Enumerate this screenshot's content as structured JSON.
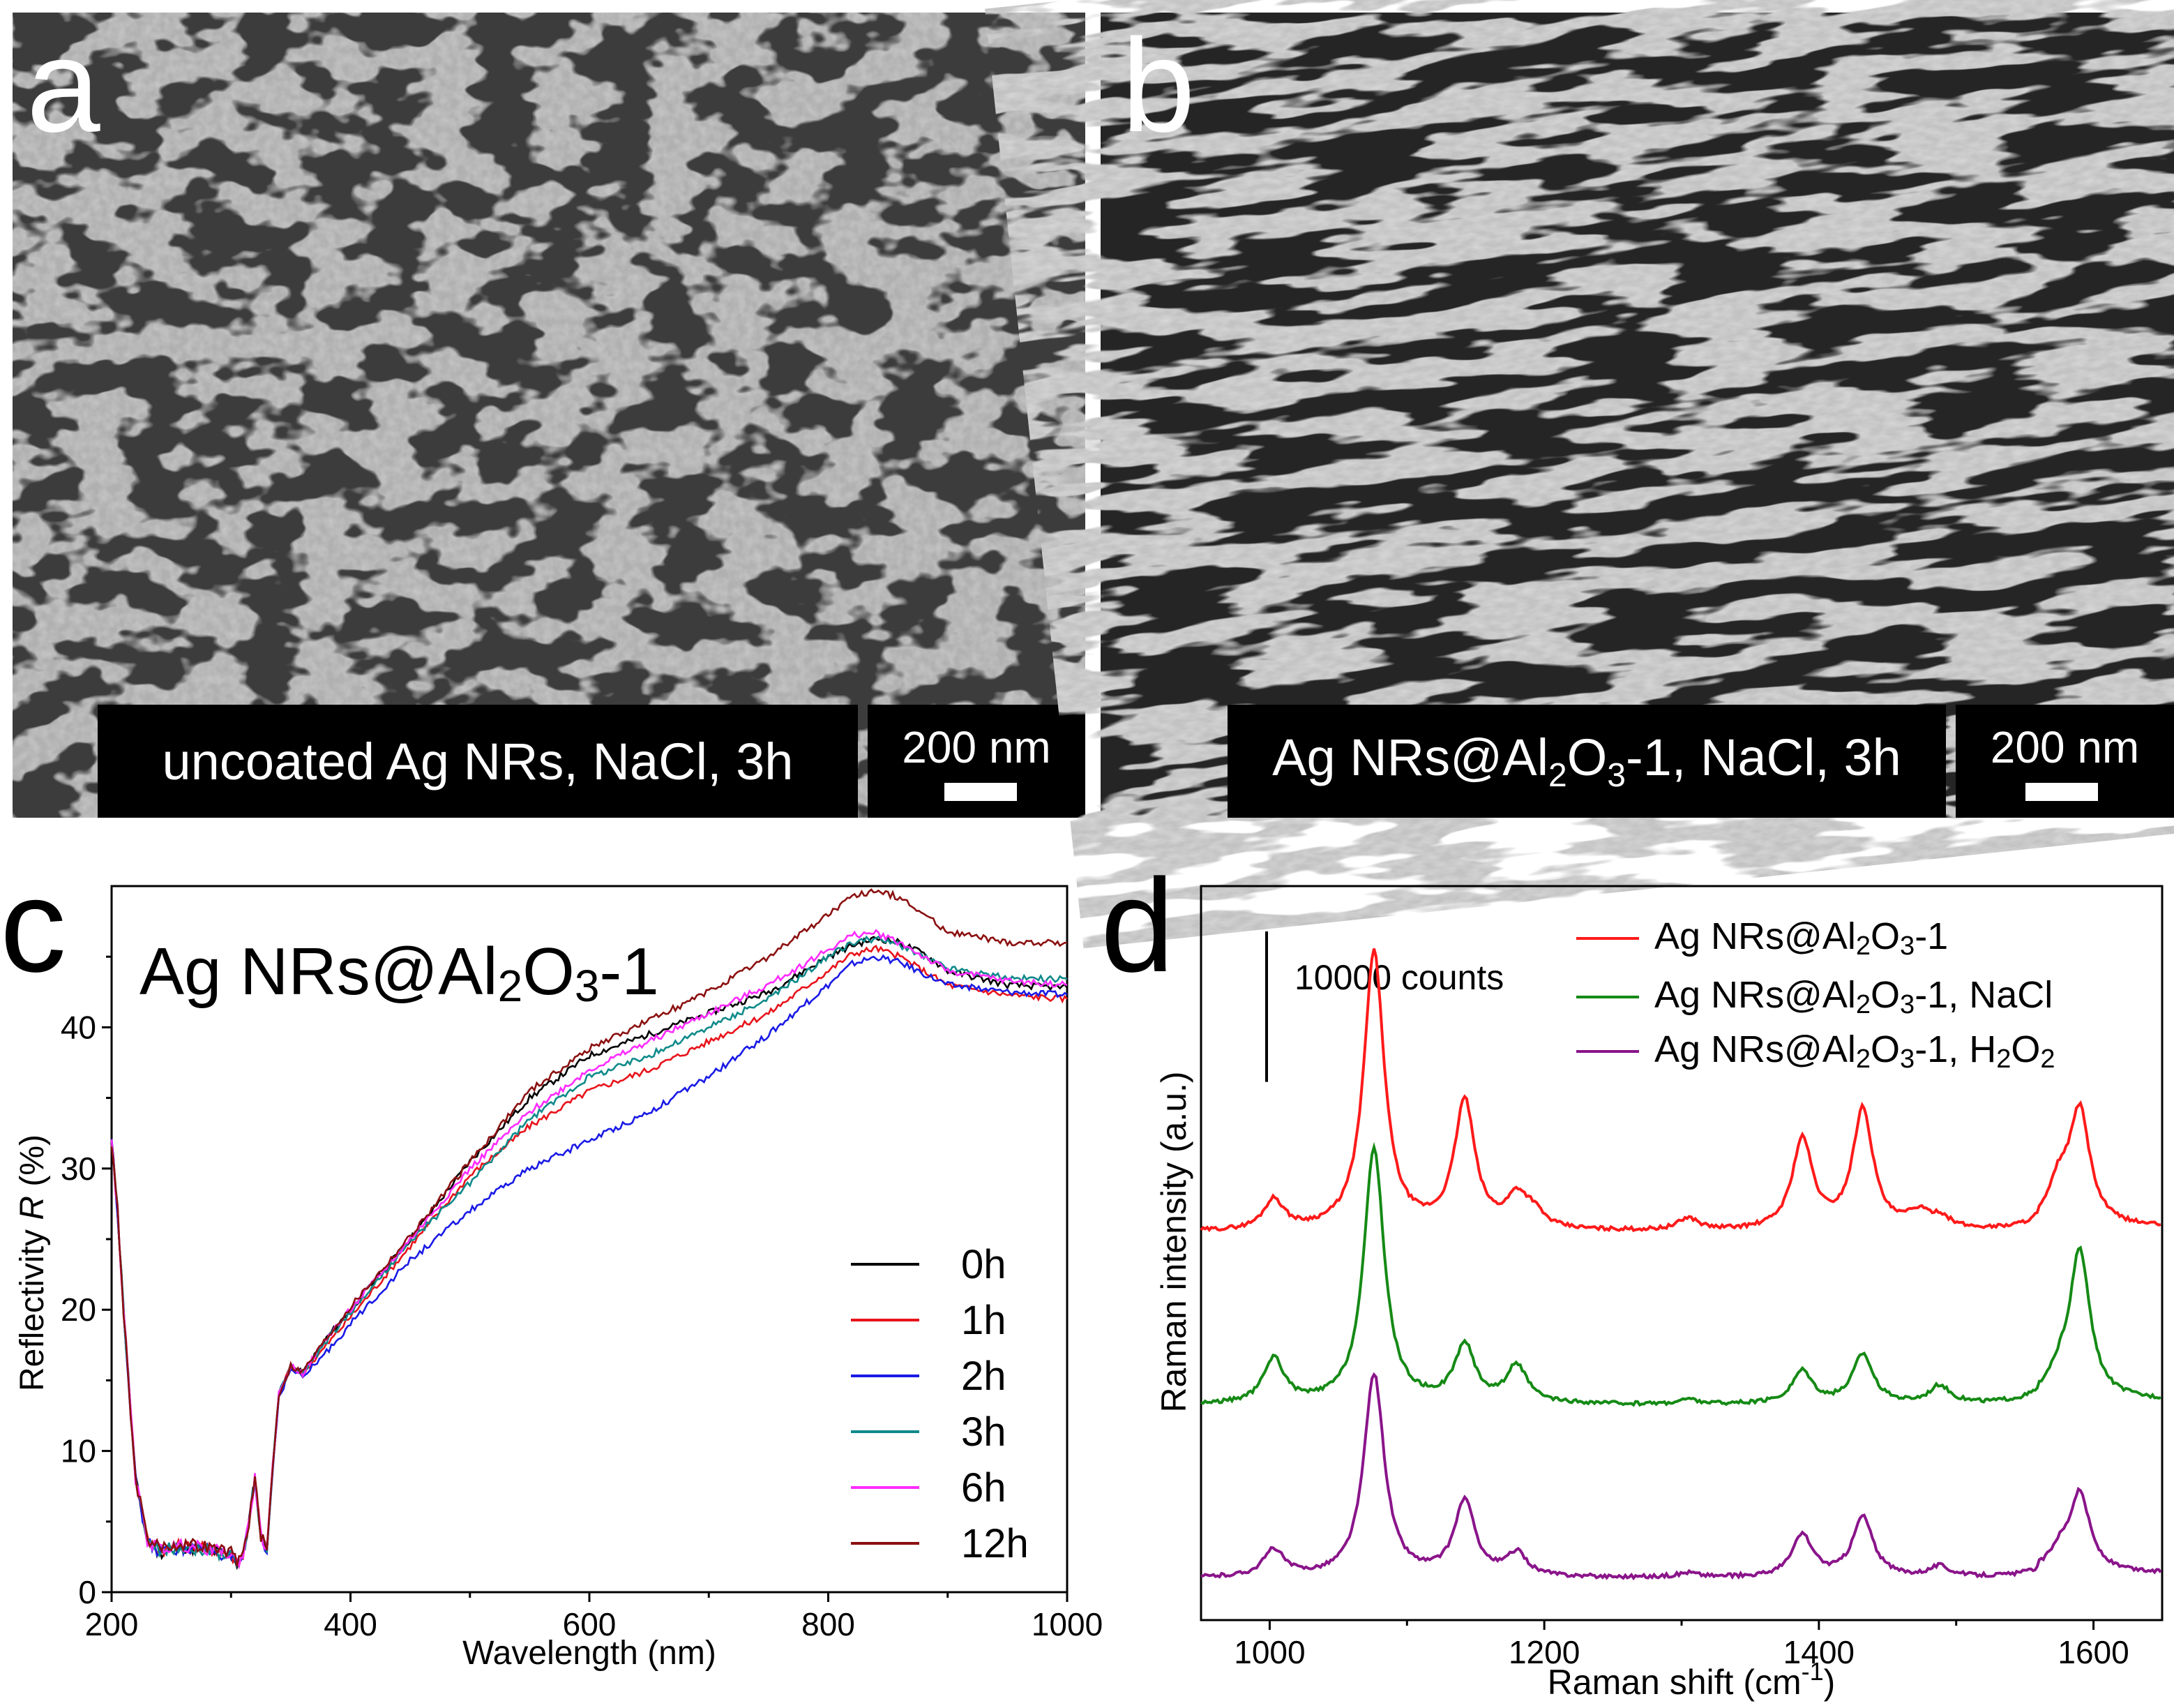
{
  "panels": {
    "a": {
      "letter": "a",
      "caption": "uncoated Ag NRs, NaCl, 3h",
      "scale_label": "200 nm"
    },
    "b": {
      "letter": "b",
      "caption_main": "Ag NRs@Al",
      "caption_sub1": "2",
      "caption_mid": "O",
      "caption_sub2": "3",
      "caption_end": "-1, NaCl, 3h",
      "scale_label": "200 nm"
    },
    "c": {
      "letter": "c"
    },
    "d": {
      "letter": "d"
    }
  },
  "colors": {
    "0h": "#000000",
    "1h": "#e8131b",
    "2h": "#1a1ae6",
    "3h": "#0f8a8a",
    "6h": "#ff2bff",
    "12h": "#8b1010",
    "pristine": "#ff1a1a",
    "nacl": "#158a15",
    "h2o2": "#8a148a"
  },
  "chart_data": [
    {
      "type": "line",
      "panel": "c",
      "title_main": "Ag NRs@Al",
      "title_sub1": "2",
      "title_mid": "O",
      "title_sub2": "3",
      "title_end": "-1",
      "xlabel": "Wavelength (nm)",
      "ylabel_pre": "Reflectivity ",
      "ylabel_var": "R",
      "ylabel_post": " (%)",
      "xlim": [
        200,
        1000
      ],
      "ylim": [
        0,
        50
      ],
      "xticks": [
        "200",
        "400",
        "600",
        "800",
        "1000"
      ],
      "yticks": [
        "0",
        "10",
        "20",
        "30",
        "40"
      ],
      "x": [
        200,
        205,
        210,
        220,
        230,
        240,
        250,
        260,
        280,
        300,
        305,
        310,
        315,
        320,
        325,
        330,
        335,
        340,
        350,
        360,
        380,
        400,
        450,
        500,
        550,
        600,
        650,
        700,
        750,
        800,
        820,
        840,
        860,
        880,
        900,
        950,
        1000
      ],
      "series": [
        {
          "name": "0h",
          "values": [
            32,
            27,
            20,
            8,
            3.5,
            2.8,
            3.0,
            3.2,
            3.0,
            2.6,
            2.0,
            2.5,
            5.0,
            8.0,
            4.0,
            3.0,
            9.0,
            14.0,
            16.0,
            15.5,
            18.0,
            20.0,
            25.0,
            30.5,
            35.0,
            38.0,
            39.5,
            41.0,
            42.5,
            45.0,
            45.8,
            46.3,
            46.0,
            45.2,
            44.0,
            43.0,
            42.8
          ]
        },
        {
          "name": "1h",
          "values": [
            32,
            27,
            20,
            8,
            3.7,
            3.0,
            3.2,
            3.3,
            3.1,
            2.7,
            2.1,
            2.6,
            5.0,
            8.0,
            4.0,
            3.0,
            9.0,
            14.0,
            16.0,
            15.5,
            17.5,
            19.5,
            24.5,
            29.5,
            33.0,
            35.5,
            37.0,
            39.0,
            41.0,
            44.0,
            45.2,
            45.6,
            45.0,
            44.0,
            43.0,
            42.3,
            42.0
          ]
        },
        {
          "name": "2h",
          "values": [
            32,
            27,
            20,
            8,
            3.5,
            2.9,
            3.0,
            3.1,
            3.0,
            2.5,
            1.9,
            2.4,
            4.8,
            7.8,
            3.8,
            2.8,
            8.8,
            13.8,
            15.8,
            15.2,
            17.0,
            19.0,
            23.5,
            27.0,
            30.0,
            32.0,
            34.0,
            36.5,
            39.5,
            43.0,
            44.5,
            45.0,
            44.6,
            43.8,
            43.0,
            42.5,
            42.3
          ]
        },
        {
          "name": "3h",
          "values": [
            32,
            27,
            20,
            8,
            3.6,
            3.0,
            3.1,
            3.2,
            3.0,
            2.6,
            2.0,
            2.5,
            5.0,
            8.0,
            4.0,
            3.0,
            9.0,
            14.0,
            16.0,
            15.5,
            17.8,
            19.8,
            24.8,
            29.0,
            33.5,
            36.5,
            38.0,
            40.0,
            42.0,
            45.0,
            46.0,
            46.3,
            45.8,
            45.0,
            44.2,
            43.5,
            43.4
          ]
        },
        {
          "name": "6h",
          "values": [
            32,
            27,
            20,
            8,
            3.7,
            3.1,
            3.2,
            3.3,
            3.1,
            2.7,
            2.1,
            2.6,
            5.0,
            8.0,
            4.0,
            3.0,
            9.0,
            14.0,
            16.0,
            15.5,
            18.0,
            20.0,
            25.0,
            30.0,
            34.0,
            37.0,
            39.0,
            41.0,
            43.0,
            45.5,
            46.5,
            46.7,
            46.0,
            45.0,
            44.0,
            43.3,
            43.0
          ]
        },
        {
          "name": "12h",
          "values": [
            32,
            27,
            20,
            8,
            3.8,
            3.2,
            3.3,
            3.4,
            3.2,
            2.8,
            2.2,
            2.7,
            5.0,
            8.0,
            4.0,
            3.0,
            9.0,
            14.0,
            16.0,
            15.6,
            18.0,
            20.2,
            25.2,
            30.5,
            35.5,
            38.5,
            40.5,
            42.5,
            45.0,
            48.0,
            49.2,
            49.7,
            49.2,
            48.0,
            46.8,
            46.0,
            46.0
          ]
        }
      ],
      "legend": [
        "0h",
        "1h",
        "2h",
        "3h",
        "6h",
        "12h"
      ]
    },
    {
      "type": "line",
      "panel": "d",
      "xlabel_pre": "Raman shift (cm",
      "xlabel_sup": "-1",
      "xlabel_post": ")",
      "ylabel": "Raman intensity (a.u.)",
      "xlim": [
        950,
        1650
      ],
      "xticks": [
        "1000",
        "1200",
        "1400",
        "1600"
      ],
      "scalebar_label": "10000 counts",
      "scalebar_counts": 10000,
      "baseline_model": "sum of Lorentzian peaks over a flat baseline",
      "series": [
        {
          "name": "Ag NRs@Al2O3-1",
          "label_main": "Ag NRs@Al",
          "label_sub1": "2",
          "label_mid": "O",
          "label_sub2": "3",
          "label_end": "-1",
          "offset": 23000,
          "peaks": [
            [
              1003,
              2000
            ],
            [
              1076,
              18500
            ],
            [
              1142,
              8500
            ],
            [
              1180,
              2000
            ],
            [
              1192,
              1000
            ],
            [
              1305,
              800
            ],
            [
              1388,
              6000
            ],
            [
              1432,
              8000
            ],
            [
              1472,
              1000
            ],
            [
              1488,
              800
            ],
            [
              1590,
              7500
            ],
            [
              1575,
              2500
            ]
          ]
        },
        {
          "name": "Ag NRs@Al2O3-1, NaCl",
          "label_main": "Ag NRs@Al",
          "label_sub1": "2",
          "label_mid": "O",
          "label_sub2": "3",
          "label_end": "-1, NaCl",
          "offset": 11500,
          "peaks": [
            [
              1003,
              3000
            ],
            [
              1076,
              17000
            ],
            [
              1142,
              3800
            ],
            [
              1180,
              2500
            ],
            [
              1305,
              300
            ],
            [
              1388,
              2200
            ],
            [
              1432,
              3300
            ],
            [
              1488,
              1200
            ],
            [
              1590,
              9800
            ],
            [
              1575,
              1200
            ]
          ]
        },
        {
          "name": "Ag NRs@Al2O3-1, H2O2",
          "label_main": "Ag NRs@Al",
          "label_sub1": "2",
          "label_mid": "O",
          "label_sub2": "3",
          "label_end": "-1, H",
          "label_sub3": "2",
          "label_end2": "O",
          "label_sub4": "2",
          "offset": 0,
          "peaks": [
            [
              1003,
              1800
            ],
            [
              1076,
              13500
            ],
            [
              1142,
              5000
            ],
            [
              1180,
              1500
            ],
            [
              1305,
              300
            ],
            [
              1388,
              2800
            ],
            [
              1432,
              4000
            ],
            [
              1488,
              700
            ],
            [
              1590,
              5200
            ],
            [
              1575,
              1200
            ]
          ]
        }
      ]
    }
  ]
}
